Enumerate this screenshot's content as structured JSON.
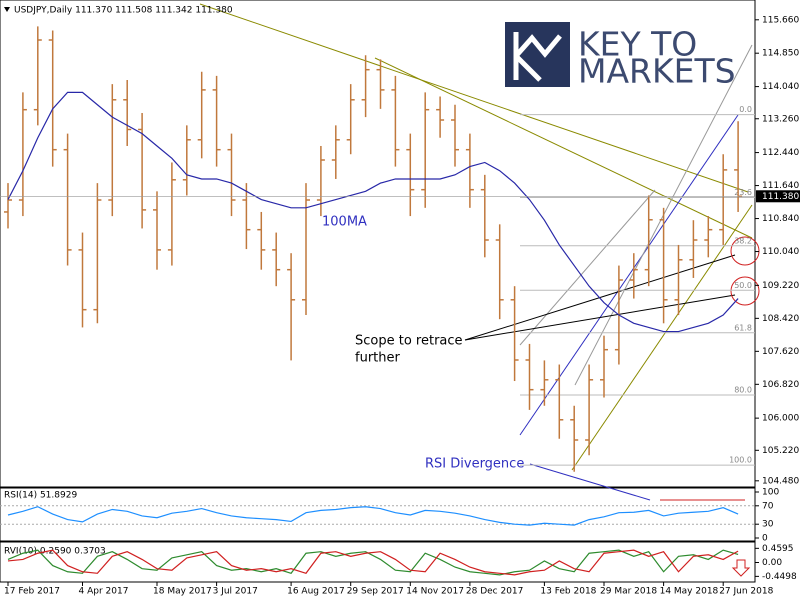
{
  "chart_data": {
    "type": "ohlc",
    "title": "USDJPY,Daily  111.370 111.508 111.342 111.380",
    "color": "#c0783c",
    "categories": [
      "17 Feb 2017",
      null,
      null,
      null,
      null,
      "4 Apr 2017",
      null,
      null,
      null,
      null,
      "18 May 2017",
      null,
      null,
      null,
      "3 Jul 2017",
      null,
      null,
      null,
      null,
      "16 Aug 2017",
      null,
      null,
      null,
      "29 Sep 2017",
      null,
      null,
      null,
      "14 Nov 2017",
      null,
      null,
      null,
      "28 Dec 2017",
      null,
      null,
      null,
      null,
      "13 Feb 2018",
      null,
      null,
      null,
      "29 Mar 2018",
      null,
      null,
      null,
      "14 May 2018",
      null,
      null,
      null,
      "27 Jun 2018",
      null
    ],
    "open": [
      111.0,
      111.29,
      113.48,
      115.17,
      112.51,
      110.08,
      108.63,
      111.29,
      113.72,
      113.0,
      111.05,
      110.08,
      111.78,
      112.75,
      113.96,
      112.51,
      111.29,
      110.57,
      110.08,
      109.6,
      108.87,
      111.29,
      112.26,
      112.75,
      113.72,
      114.45,
      113.96,
      112.51,
      111.54,
      113.48,
      113.23,
      112.51,
      111.54,
      110.32,
      108.87,
      107.41,
      106.69,
      106.93,
      105.96,
      105.47,
      106.93,
      107.66,
      109.35,
      109.6,
      110.81,
      108.87,
      109.84,
      110.32,
      110.57,
      112.02
    ],
    "high": [
      111.7,
      113.9,
      115.5,
      115.4,
      112.9,
      110.5,
      111.7,
      114.1,
      114.2,
      113.4,
      111.5,
      112.2,
      113.1,
      114.4,
      114.3,
      112.9,
      111.7,
      111.0,
      110.5,
      110.0,
      111.7,
      112.6,
      113.1,
      114.1,
      114.8,
      114.7,
      114.3,
      112.9,
      113.9,
      113.8,
      113.6,
      112.9,
      111.9,
      110.7,
      109.2,
      107.8,
      107.4,
      107.3,
      106.3,
      107.3,
      108.0,
      109.7,
      110.0,
      111.4,
      111.1,
      110.2,
      110.8,
      110.9,
      112.4,
      113.2
    ],
    "low": [
      110.6,
      110.9,
      113.1,
      112.1,
      109.7,
      108.2,
      108.3,
      110.9,
      112.6,
      110.6,
      109.6,
      109.7,
      111.4,
      112.3,
      112.1,
      110.9,
      110.1,
      109.6,
      109.2,
      107.4,
      108.5,
      110.9,
      111.8,
      112.4,
      113.3,
      113.5,
      112.1,
      110.9,
      111.1,
      112.8,
      112.1,
      111.1,
      109.9,
      108.4,
      106.9,
      106.2,
      106.3,
      105.5,
      104.7,
      105.1,
      106.5,
      107.3,
      108.9,
      109.2,
      108.3,
      108.5,
      109.4,
      109.9,
      110.2,
      111.0
    ],
    "close": [
      111.29,
      113.48,
      115.17,
      112.51,
      110.08,
      108.63,
      111.29,
      113.72,
      113.0,
      111.05,
      110.08,
      111.78,
      112.75,
      113.96,
      112.51,
      111.29,
      110.57,
      110.08,
      109.6,
      108.87,
      111.29,
      112.26,
      112.75,
      113.72,
      114.45,
      113.96,
      112.51,
      111.54,
      113.48,
      113.23,
      112.51,
      111.54,
      110.32,
      108.87,
      107.41,
      106.69,
      106.93,
      105.96,
      105.47,
      106.93,
      107.66,
      109.35,
      109.6,
      110.81,
      108.87,
      109.84,
      110.32,
      110.57,
      112.02,
      111.38
    ],
    "last_price": {
      "value": 111.38,
      "label": "111.380"
    },
    "ylim": [
      104.33,
      116.14
    ],
    "yticks": [
      {
        "value": 115.66,
        "label": "115.660"
      },
      {
        "value": 114.85,
        "label": "114.850"
      },
      {
        "value": 114.04,
        "label": "114.040"
      },
      {
        "value": 113.26,
        "label": "113.260"
      },
      {
        "value": 112.44,
        "label": "112.440"
      },
      {
        "value": 111.64,
        "label": "111.640"
      },
      {
        "value": 110.84,
        "label": "110.840"
      },
      {
        "value": 110.04,
        "label": "110.040"
      },
      {
        "value": 109.22,
        "label": "109.220"
      },
      {
        "value": 108.42,
        "label": "108.420"
      },
      {
        "value": 107.62,
        "label": "107.620"
      },
      {
        "value": 106.82,
        "label": "106.820"
      },
      {
        "value": 106,
        "label": "106.000"
      },
      {
        "value": 105.22,
        "label": "105.220"
      },
      {
        "value": 104.48,
        "label": "104.480"
      }
    ],
    "ma": {
      "name": "100MA",
      "color": "#2828a8",
      "values": [
        111.3,
        112.0,
        112.8,
        113.5,
        113.9,
        113.9,
        113.6,
        113.3,
        113.1,
        112.9,
        112.6,
        112.3,
        111.9,
        111.8,
        111.8,
        111.7,
        111.5,
        111.3,
        111.2,
        111.1,
        111.1,
        111.2,
        111.3,
        111.4,
        111.5,
        111.7,
        111.8,
        111.8,
        111.8,
        111.8,
        111.9,
        112.1,
        112.2,
        112.0,
        111.7,
        111.3,
        110.8,
        110.2,
        109.7,
        109.2,
        108.8,
        108.5,
        108.3,
        108.2,
        108.1,
        108.1,
        108.2,
        108.3,
        108.5,
        108.9
      ]
    },
    "fib": {
      "levels": [
        113.36,
        111.35,
        110.18,
        109.1,
        108.07,
        106.56,
        104.86
      ],
      "labels": [
        "0.0",
        "23.6",
        "38.2",
        "50.0",
        "61.8",
        "80.0",
        "100.0"
      ]
    },
    "annotations": {
      "scope": [
        "Scope to retrace",
        "further"
      ],
      "divergence": "RSI Divergence"
    },
    "logo": [
      "KEY TO",
      "MARKETS"
    ],
    "rsi": {
      "label": "RSI(14) 51.8929",
      "color": "#1e8fff",
      "ylim": [
        0,
        100
      ],
      "yticks": [
        100,
        70,
        30,
        0
      ],
      "values": [
        50,
        58,
        68,
        52,
        40,
        35,
        52,
        62,
        58,
        48,
        44,
        54,
        58,
        64,
        55,
        48,
        44,
        42,
        40,
        36,
        55,
        60,
        62,
        66,
        68,
        64,
        55,
        50,
        60,
        58,
        54,
        48,
        40,
        34,
        30,
        28,
        32,
        30,
        28,
        40,
        46,
        55,
        56,
        60,
        48,
        54,
        56,
        58,
        66,
        52
      ]
    },
    "rvi": {
      "label": "RVI(10) 0.2590 0.3703",
      "ylim": [
        -0.6,
        0.6
      ],
      "yticks": [
        0.4595,
        {
          "value": 0,
          "label": "0.00"
        },
        -0.4498
      ],
      "series": [
        {
          "color": "#2e8b2e",
          "values": [
            0.1,
            0.3,
            0.4,
            -0.1,
            -0.3,
            -0.35,
            0.2,
            0.35,
            0.1,
            -0.2,
            -0.25,
            0.15,
            0.25,
            0.35,
            -0.1,
            -0.25,
            -0.2,
            -0.3,
            -0.2,
            -0.35,
            0.3,
            0.35,
            0.2,
            0.3,
            0.35,
            0.1,
            -0.25,
            -0.3,
            0.3,
            0.1,
            -0.15,
            -0.3,
            -0.35,
            -0.4,
            -0.3,
            -0.25,
            0.05,
            -0.2,
            -0.3,
            0.3,
            0.35,
            0.4,
            0.2,
            0.35,
            -0.3,
            0.2,
            0.25,
            0.1,
            0.4,
            0.26
          ]
        },
        {
          "color": "#d02020",
          "values": [
            0.05,
            0.1,
            0.3,
            0.4,
            -0.1,
            -0.3,
            -0.35,
            0.2,
            0.35,
            0.1,
            -0.2,
            -0.25,
            0.15,
            0.25,
            0.35,
            -0.1,
            -0.25,
            -0.2,
            -0.3,
            -0.2,
            -0.35,
            0.3,
            0.35,
            0.2,
            0.3,
            0.35,
            0.1,
            -0.25,
            -0.3,
            0.3,
            0.1,
            -0.15,
            -0.3,
            -0.35,
            -0.4,
            -0.3,
            -0.25,
            0.05,
            -0.2,
            -0.3,
            0.3,
            0.35,
            0.4,
            0.2,
            0.35,
            -0.3,
            0.2,
            0.25,
            0.1,
            0.37
          ]
        }
      ]
    }
  }
}
